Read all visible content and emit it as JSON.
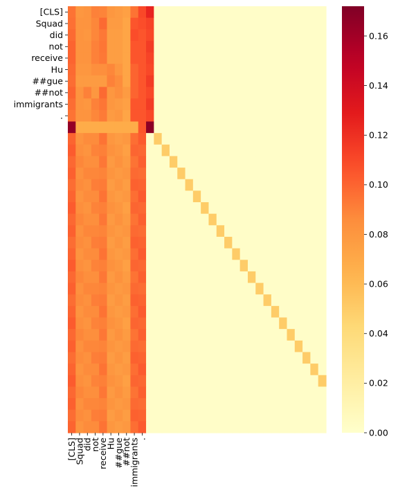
{
  "chart_data": {
    "type": "heatmap",
    "title": "",
    "xlabel": "",
    "ylabel": "",
    "tokens": [
      "[CLS]",
      "Squad",
      "did",
      "not",
      "receive",
      "Hu",
      "##gue",
      "##not",
      "immigrants",
      "."
    ],
    "x_labels": [
      "[CLS]",
      "Squad",
      "did",
      "not",
      "receive",
      "Hu",
      "##gue",
      "##not",
      "immigrants",
      "."
    ],
    "y_labels": [
      "[CLS]",
      "Squad",
      "did",
      "not",
      "receive",
      "Hu",
      "##gue",
      "##not",
      "immigrants",
      "."
    ],
    "n_rows": 37,
    "n_cols": 33,
    "colormap": "YlOrRd",
    "vmin": 0.0,
    "vmax": 0.172,
    "colorbar_ticks": [
      "0.00",
      "0.02",
      "0.04",
      "0.06",
      "0.08",
      "0.10",
      "0.12",
      "0.14",
      "0.16"
    ],
    "colorbar_tick_values": [
      0.0,
      0.02,
      0.04,
      0.06,
      0.08,
      0.1,
      0.12,
      0.14,
      0.16
    ],
    "token_rows": [
      [
        0.095,
        0.08,
        0.082,
        0.09,
        0.089,
        0.08,
        0.078,
        0.075,
        0.095,
        0.11,
        0.125
      ],
      [
        0.096,
        0.082,
        0.082,
        0.088,
        0.098,
        0.078,
        0.078,
        0.072,
        0.105,
        0.108,
        0.112
      ],
      [
        0.098,
        0.082,
        0.08,
        0.088,
        0.093,
        0.076,
        0.076,
        0.072,
        0.108,
        0.105,
        0.11
      ],
      [
        0.1,
        0.082,
        0.082,
        0.09,
        0.094,
        0.076,
        0.076,
        0.072,
        0.105,
        0.105,
        0.115
      ],
      [
        0.1,
        0.082,
        0.082,
        0.09,
        0.093,
        0.076,
        0.076,
        0.072,
        0.105,
        0.105,
        0.112
      ],
      [
        0.098,
        0.08,
        0.08,
        0.085,
        0.085,
        0.088,
        0.08,
        0.072,
        0.1,
        0.105,
        0.11
      ],
      [
        0.097,
        0.078,
        0.078,
        0.078,
        0.078,
        0.09,
        0.086,
        0.072,
        0.1,
        0.105,
        0.115
      ],
      [
        0.1,
        0.082,
        0.09,
        0.08,
        0.098,
        0.08,
        0.085,
        0.078,
        0.1,
        0.105,
        0.11
      ],
      [
        0.097,
        0.082,
        0.08,
        0.09,
        0.094,
        0.08,
        0.078,
        0.075,
        0.105,
        0.105,
        0.115
      ],
      [
        0.095,
        0.082,
        0.082,
        0.088,
        0.092,
        0.078,
        0.08,
        0.072,
        0.105,
        0.105,
        0.11
      ]
    ],
    "sep_row": [
      0.165,
      0.068,
      0.068,
      0.068,
      0.068,
      0.068,
      0.068,
      0.068,
      0.068,
      0.105,
      0.168
    ],
    "padding_row_pattern": [
      0.1,
      0.085,
      0.085,
      0.088,
      0.092,
      0.08,
      0.08,
      0.078,
      0.098,
      0.1
    ],
    "background_value": 0.002,
    "diagonal_value": 0.05
  }
}
